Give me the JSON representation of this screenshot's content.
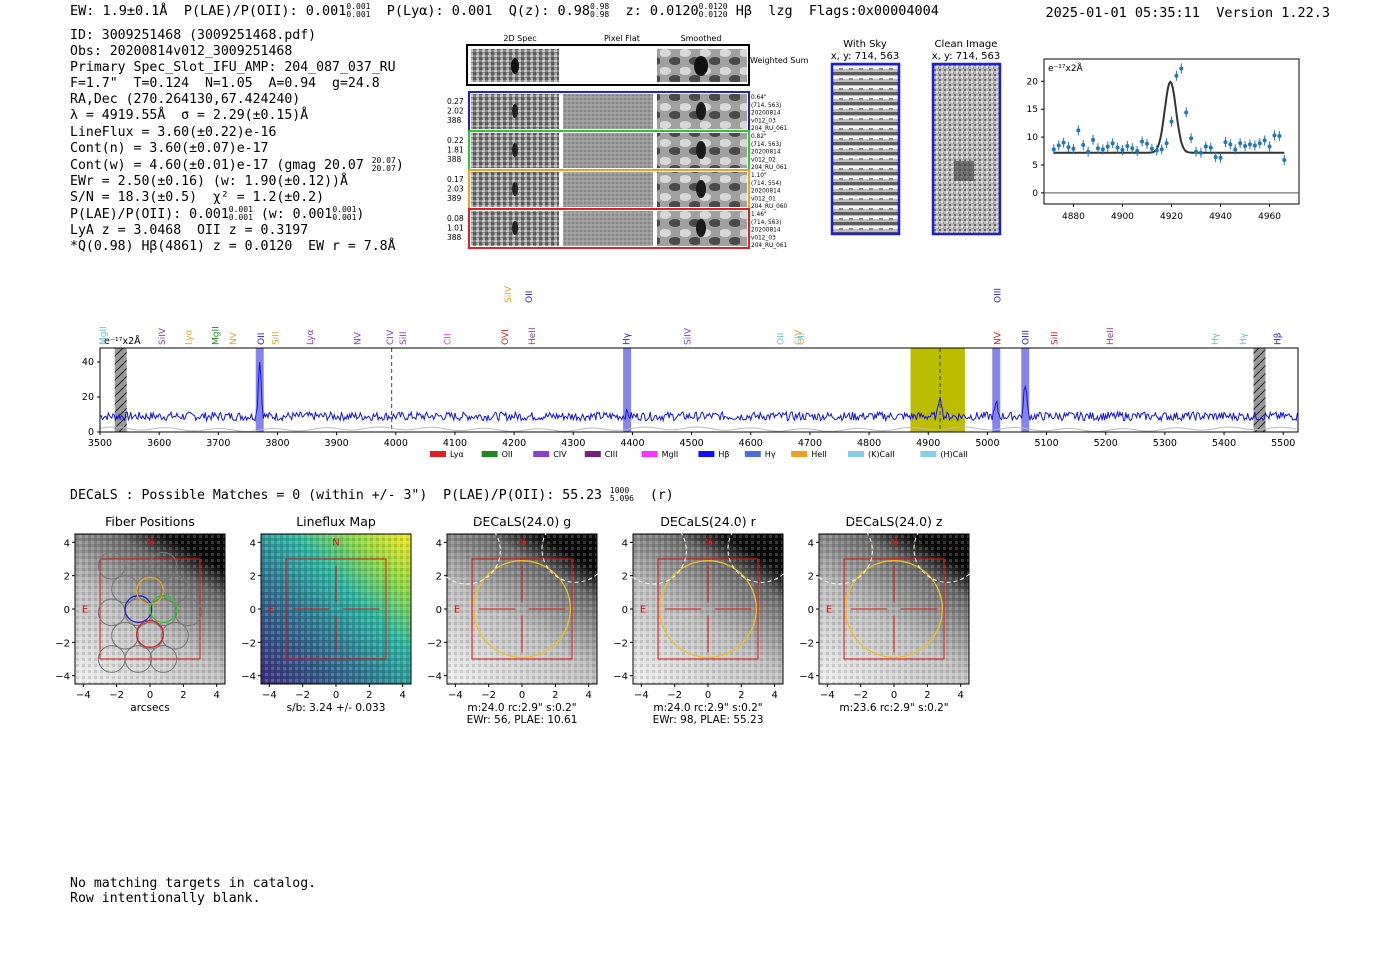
{
  "header": {
    "ew": "EW: 1.9±0.1Å",
    "plae_label": "P(LAE)/P(OII):",
    "plae_value": "0.001",
    "plae_sup": "0.001",
    "plae_sub": "0.001",
    "plya": "P(Lyα): 0.001",
    "qz_label": "Q(z): 0.98",
    "qz_sup": "0.98",
    "qz_sub": "0.98",
    "z_label": "z: 0.0120",
    "z_sup": "0.0120",
    "z_sub": "0.0120",
    "line_tag": "Hβ",
    "tag2": "lzg",
    "flags": "Flags:0x00004004",
    "timestamp": "2025-01-01 05:35:11",
    "version": "Version 1.22.3"
  },
  "info": {
    "id": "ID: 3009251468 (3009251468.pdf)",
    "obs": "Obs: 20200814v012_3009251468",
    "primary": "Primary Spec_Slot_IFU_AMP: 204_087_037_RU",
    "fiber_params": "F=1.7\"  T=0.124  N=1.05  A=0.94  g=24.8",
    "radec": "RA,Dec (270.264130,67.424240)",
    "lambda": "λ = 4919.55Å  σ = 2.29(±0.15)Å",
    "lineflux": "LineFlux = 3.60(±0.22)e-16",
    "contn": "Cont(n) = 3.60(±0.07)e-17",
    "contw_main": "Cont(w) = 4.60(±0.01)e-17 (gmag 20.07",
    "contw_sup": "20.07",
    "contw_sub": "20.07",
    "ewr": "EWr = 2.50(±0.16) (w: 1.90(±0.12))Å",
    "sn": "S/N = 18.3(±0.5)  χ² = 1.2(±0.2)",
    "plae2_main": "P(LAE)/P(OII): 0.001",
    "plae2_sup": "0.001",
    "plae2_sub": "0.001",
    "plae2_w": "(w: 0.001",
    "plae2_wsup": "0.001",
    "plae2_wsub": "0.001",
    "lya_oii": "LyA z = 3.0468  OII z = 0.3197",
    "best": "*Q(0.98) Hβ(4861) z = 0.0120  EW r = 7.8Å"
  },
  "cutouts": {
    "col_headers": [
      "2D Spec",
      "Pixel Flat",
      "Smoothed"
    ],
    "weighted_label": "Weighted Sum",
    "rows": [
      {
        "left": [
          "0.27",
          "2.02",
          "388"
        ],
        "right": [
          "0.64\"",
          "(714, 563)",
          "20200814",
          "v012_03",
          "204_RU_061"
        ],
        "color": "#1f1fd0"
      },
      {
        "left": [
          "0.22",
          "1.81",
          "388"
        ],
        "right": [
          "0.82\"",
          "(714, 563)",
          "20200814",
          "v012_02",
          "204_RU_061"
        ],
        "color": "#2ec62e"
      },
      {
        "left": [
          "0.17",
          "2.03",
          "389"
        ],
        "right": [
          "1.10\"",
          "(714, 554)",
          "20200814",
          "v012_01",
          "204_RU_060"
        ],
        "color": "#f0a020"
      },
      {
        "left": [
          "0.08",
          "1.01",
          "388"
        ],
        "right": [
          "1.46\"",
          "(714, 563)",
          "20200814",
          "v012_03",
          "204_RU_061"
        ],
        "color": "#e02020"
      }
    ]
  },
  "sky_panels": [
    {
      "title": "With Sky",
      "subtitle": "x, y: 714, 563"
    },
    {
      "title": "Clean Image",
      "subtitle": "x, y: 714, 563"
    }
  ],
  "decals": {
    "summary": "DECaLS : Possible Matches = 0 (within +/- 3\")  P(LAE)/P(OII): 55.23",
    "summary_sup": "1000",
    "summary_sub": "5.096",
    "summary_tail": "(r)"
  },
  "image_panels": [
    {
      "title": "Fiber Positions",
      "caption1": "arcsecs",
      "caption2": ""
    },
    {
      "title": "Lineflux Map",
      "caption1": "s/b: 3.24 +/- 0.033",
      "caption2": ""
    },
    {
      "title": "DECaLS(24.0) g",
      "caption1": "m:24.0 rc:2.9\"  s:0.2\"",
      "caption2": "EWr: 56, PLAE: 10.61"
    },
    {
      "title": "DECaLS(24.0) r",
      "caption1": "m:24.0 rc:2.9\"  s:0.2\"",
      "caption2": "EWr: 98, PLAE: 55.23"
    },
    {
      "title": "DECaLS(24.0) z",
      "caption1": "m:23.6 rc:2.9\"  s:0.2\"",
      "caption2": ""
    }
  ],
  "footer": {
    "line1": "No matching targets in catalog.",
    "line2": "Row intentionally blank."
  },
  "chart_data": [
    {
      "type": "scatter",
      "name": "zoom-line-fit",
      "ylabel_unit": "e⁻¹⁷x2Å",
      "xlim": [
        4868,
        4972
      ],
      "ylim": [
        -2,
        24
      ],
      "xticks": [
        4880,
        4900,
        4920,
        4940,
        4960
      ],
      "yticks": [
        0,
        5,
        10,
        15,
        20
      ],
      "points_x": [
        4872,
        4874,
        4876,
        4878,
        4880,
        4882,
        4884,
        4886,
        4888,
        4890,
        4892,
        4894,
        4896,
        4898,
        4900,
        4902,
        4904,
        4906,
        4908,
        4910,
        4912,
        4914,
        4916,
        4918,
        4920,
        4922,
        4924,
        4926,
        4928,
        4930,
        4932,
        4934,
        4936,
        4938,
        4940,
        4942,
        4944,
        4946,
        4948,
        4950,
        4952,
        4954,
        4956,
        4958,
        4960,
        4962,
        4964,
        4966
      ],
      "points_y": [
        7.8,
        8.5,
        9.0,
        8.2,
        7.9,
        11.2,
        8.6,
        7.4,
        9.5,
        8.0,
        7.8,
        8.3,
        8.9,
        8.1,
        7.7,
        8.4,
        8.0,
        7.5,
        9.2,
        8.8,
        7.9,
        7.6,
        7.8,
        8.9,
        12.8,
        21.0,
        22.3,
        14.4,
        9.8,
        7.4,
        7.2,
        8.3,
        8.1,
        6.4,
        6.3,
        9.1,
        8.7,
        7.8,
        8.9,
        8.4,
        8.7,
        8.5,
        8.9,
        9.4,
        8.3,
        10.3,
        10.2,
        5.9
      ],
      "fit": {
        "center": 4919.55,
        "sigma": 2.29,
        "amplitude": 12.7,
        "continuum": 7.2
      }
    },
    {
      "type": "line",
      "name": "full-spectrum",
      "ylabel_unit": "e⁻¹⁷x2Å",
      "xlim": [
        3500,
        5525
      ],
      "ylim": [
        0,
        48
      ],
      "xticks": [
        3500,
        3600,
        3700,
        3800,
        3900,
        4000,
        4100,
        4200,
        4300,
        4400,
        4500,
        4600,
        4700,
        4800,
        4900,
        5000,
        5100,
        5200,
        5300,
        5400,
        5500
      ],
      "yticks": [
        0,
        20,
        40
      ],
      "highlight_regions": [
        {
          "x0": 4870,
          "x1": 4962,
          "color": "#bdbd00"
        }
      ],
      "line_bands": [
        3770,
        4391,
        5015,
        5064
      ],
      "hatched_bands": [
        3535,
        5460
      ],
      "dashed_lines": [
        3993,
        4920
      ],
      "peaks": [
        {
          "x": 3770,
          "height": 42
        },
        {
          "x": 4391,
          "height": 11
        },
        {
          "x": 4920,
          "height": 22
        },
        {
          "x": 5015,
          "height": 16
        },
        {
          "x": 5064,
          "height": 28
        }
      ],
      "continuum_level": 9,
      "line_labels": [
        {
          "text": "MgII",
          "x": 3505,
          "color": "#66c2e0",
          "row": 0
        },
        {
          "text": "SiIV",
          "x": 3605,
          "color": "#8a3fd1",
          "row": 0
        },
        {
          "text": "Lyα",
          "x": 3650,
          "color": "#f0a020",
          "row": 0
        },
        {
          "text": "MgII",
          "x": 3695,
          "color": "#1e8a1e",
          "row": 0
        },
        {
          "text": "NV",
          "x": 3725,
          "color": "#f0a020",
          "row": 0
        },
        {
          "text": "OII",
          "x": 3772,
          "color": "#1f1fd0",
          "row": 0
        },
        {
          "text": "SiII",
          "x": 3797,
          "color": "#f0a020",
          "row": 0
        },
        {
          "text": "Lyα",
          "x": 3855,
          "color": "#8a3fd1",
          "row": 0
        },
        {
          "text": "NV",
          "x": 3935,
          "color": "#8a3fd1",
          "row": 0
        },
        {
          "text": "CIV",
          "x": 3990,
          "color": "#8a3fd1",
          "row": 0
        },
        {
          "text": "SiII",
          "x": 4012,
          "color": "#8a3fd1",
          "row": 0
        },
        {
          "text": "CII",
          "x": 4087,
          "color": "#e040e0",
          "row": 0
        },
        {
          "text": "OVI",
          "x": 4185,
          "color": "#e02020",
          "row": 0
        },
        {
          "text": "SiIV",
          "x": 4190,
          "color": "#f0a020",
          "row": 1
        },
        {
          "text": "OII",
          "x": 4225,
          "color": "#1f1fd0",
          "row": 1
        },
        {
          "text": "HeII",
          "x": 4230,
          "color": "#8a3fd1",
          "row": 0
        },
        {
          "text": "Hγ",
          "x": 4390,
          "color": "#1f1fd0",
          "row": 0
        },
        {
          "text": "SiIV",
          "x": 4493,
          "color": "#8a3fd1",
          "row": 0
        },
        {
          "text": "OII",
          "x": 4650,
          "color": "#66c2e0",
          "row": 0
        },
        {
          "text": "CIV",
          "x": 4680,
          "color": "#f0a020",
          "row": 0
        },
        {
          "text": "OII",
          "x": 4685,
          "color": "#66c2e0",
          "row": 0
        },
        {
          "text": "OIII",
          "x": 5017,
          "color": "#1f1fd0",
          "row": 1
        },
        {
          "text": "NV",
          "x": 5017,
          "color": "#e02020",
          "row": 0
        },
        {
          "text": "OIII",
          "x": 5064,
          "color": "#1f1fd0",
          "row": 0
        },
        {
          "text": "SiII",
          "x": 5113,
          "color": "#e02020",
          "row": 0
        },
        {
          "text": "HeII",
          "x": 5207,
          "color": "#8a3fd1",
          "row": 0
        },
        {
          "text": "Hγ",
          "x": 5385,
          "color": "#66c2e0",
          "row": 0
        },
        {
          "text": "Hγ",
          "x": 5432,
          "color": "#66c2e0",
          "row": 0
        },
        {
          "text": "Hβ",
          "x": 5490,
          "color": "#1f1fd0",
          "row": 0
        }
      ],
      "legend": [
        {
          "label": "Lyα",
          "color": "#e02020"
        },
        {
          "label": "OII",
          "color": "#1e8a1e"
        },
        {
          "label": "CIV",
          "color": "#8a3fd1"
        },
        {
          "label": "CIII",
          "color": "#7a1f7a"
        },
        {
          "label": "MgII",
          "color": "#ff30ff"
        },
        {
          "label": "Hβ",
          "color": "#1010ff"
        },
        {
          "label": "Hγ",
          "color": "#4a6ee0"
        },
        {
          "label": "HeII",
          "color": "#f0a020"
        },
        {
          "label": "(K)CaII",
          "color": "#87cee8"
        },
        {
          "label": "(H)CaII",
          "color": "#87cee8"
        }
      ]
    },
    {
      "type": "heatmap",
      "name": "imaging-panels",
      "xlim": [
        -4.5,
        4.5
      ],
      "ylim": [
        -4.5,
        4.5
      ],
      "xticks": [
        -4,
        -2,
        0,
        2,
        4
      ],
      "yticks": [
        -4,
        -2,
        0,
        2,
        4
      ],
      "box_halfwidth": 3,
      "aperture_radius": 2.9,
      "compass": {
        "north": "N",
        "east": "E"
      }
    }
  ]
}
